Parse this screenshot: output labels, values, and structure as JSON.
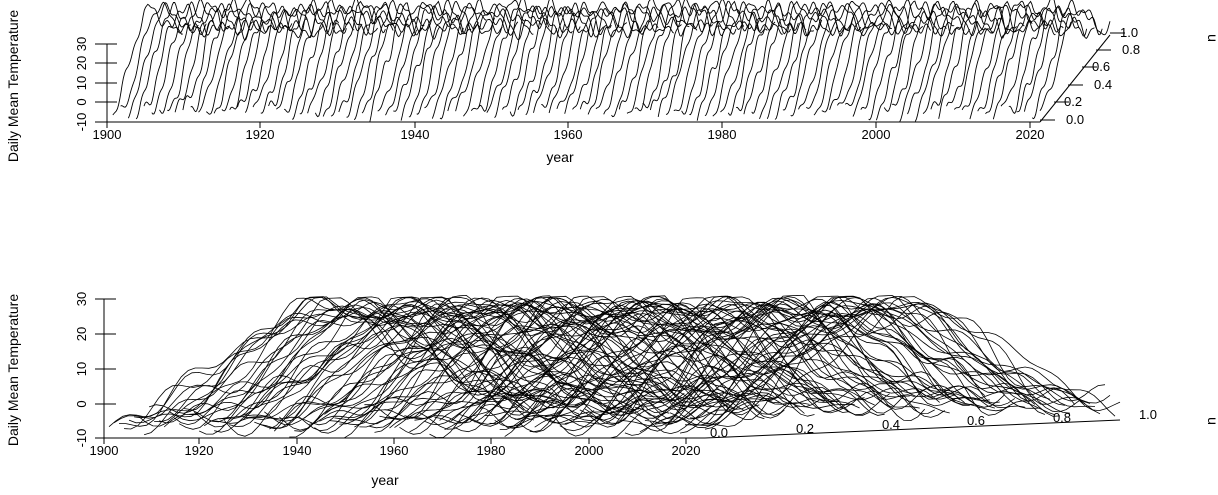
{
  "chart_data": [
    {
      "type": "line",
      "description_type": "3d-perspective-functional-curves",
      "xlabel": "year",
      "ylabel": "Daily Mean Temperature",
      "zlabel": "u",
      "x_ticks": [
        "1900",
        "1920",
        "1940",
        "1960",
        "1980",
        "2000",
        "2020"
      ],
      "y_ticks": [
        "-10",
        "0",
        "10",
        "20",
        "30"
      ],
      "u_ticks": [
        "0.0",
        "0.2",
        "0.4",
        "0.6",
        "0.8",
        "1.0"
      ],
      "xlim": [
        1900,
        2020
      ],
      "ylim": [
        -10,
        30
      ],
      "ulim": [
        0,
        1
      ],
      "years": [
        1901,
        2020
      ],
      "series_count": 120,
      "curve_shape": {
        "winter_min": -5,
        "summer_max": 25,
        "period_u": [
          0,
          1
        ]
      },
      "line_color": "#000000"
    },
    {
      "type": "line",
      "description_type": "3d-perspective-functional-curves",
      "xlabel": "year",
      "ylabel": "Daily Mean Temperature",
      "zlabel": "u",
      "x_ticks": [
        "1900",
        "1920",
        "1940",
        "1960",
        "1980",
        "2000",
        "2020"
      ],
      "y_ticks": [
        "-10",
        "0",
        "10",
        "20",
        "30"
      ],
      "u_ticks": [
        "0.0",
        "0.2",
        "0.4",
        "0.6",
        "0.8",
        "1.0"
      ],
      "xlim": [
        1900,
        2020
      ],
      "ylim": [
        -10,
        30
      ],
      "ulim": [
        0,
        1
      ],
      "years": [
        1901,
        2020
      ],
      "series_count": 120,
      "curve_shape": {
        "winter_min": -5,
        "summer_max": 25,
        "period_u": [
          0,
          1
        ]
      },
      "line_color": "#000000"
    }
  ]
}
